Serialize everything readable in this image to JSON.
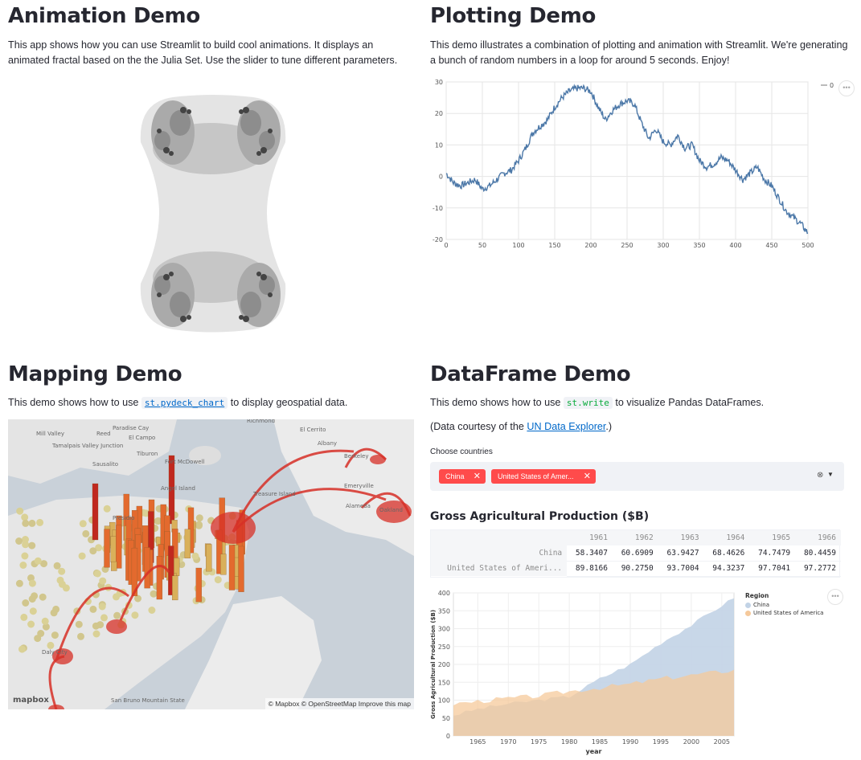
{
  "animation": {
    "title": "Animation Demo",
    "description": "This app shows how you can use Streamlit to build cool animations. It displays an animated fractal based on the the Julia Set. Use the slider to tune different parameters."
  },
  "plotting": {
    "title": "Plotting Demo",
    "description": "This demo illustrates a combination of plotting and animation with Streamlit. We're generating a bunch of random numbers in a loop for around 5 seconds. Enjoy!",
    "legend_label": "0",
    "menu_icon": "ellipsis-icon"
  },
  "mapping": {
    "title": "Mapping Demo",
    "desc_before": "This demo shows how to use",
    "desc_code": "st.pydeck_chart",
    "desc_after": "to display geospatial data.",
    "attribution": "© Mapbox © OpenStreetMap Improve this map",
    "logo": "mapbox",
    "place_labels": [
      "Richmond",
      "El Cerrito",
      "Mill Valley",
      "Tamalpais Valley Junction",
      "Sausalito",
      "Albany",
      "Berkeley",
      "Emeryville",
      "Oakland",
      "Treasure Island",
      "Presidio",
      "Daly City",
      "San Bruno Mountain State",
      "Reed",
      "Paradise Cay",
      "El Campo",
      "Tiburon",
      "Fort McDowell",
      "Angel Island",
      "Alameda"
    ]
  },
  "dataframe": {
    "title": "DataFrame Demo",
    "desc_before": "This demo shows how to use",
    "desc_code": "st.write",
    "desc_after": "to visualize Pandas DataFrames.",
    "courtesy_before": "(Data courtesy of the ",
    "courtesy_link": "UN Data Explorer",
    "courtesy_after": ".)",
    "choose_label": "Choose countries",
    "tags": [
      "China",
      "United States of Amer..."
    ],
    "table_title": "Gross Agricultural Production ($B)",
    "columns": [
      "1961",
      "1962",
      "1963",
      "1964",
      "1965",
      "1966"
    ],
    "rows": [
      {
        "label": "China",
        "values": [
          "58.3407",
          "60.6909",
          "63.9427",
          "68.4626",
          "74.7479",
          "80.4459"
        ]
      },
      {
        "label": "United States of Ameri...",
        "values": [
          "89.8166",
          "90.2750",
          "93.7004",
          "94.3237",
          "97.7041",
          "97.2772"
        ]
      }
    ]
  },
  "area_chart_legend": {
    "title": "Region",
    "entries": [
      "China",
      "United States of America"
    ]
  },
  "colors": {
    "line": "#4c78a8",
    "china": "#c2d3e6",
    "usa": "#f5c99b",
    "overlap": "#cfb295",
    "accent": "#ff4b4b",
    "map_red": "#d73027"
  },
  "chart_data": [
    {
      "type": "line",
      "title": "",
      "xlabel": "",
      "ylabel": "",
      "xlim": [
        0,
        500
      ],
      "ylim": [
        -20,
        30
      ],
      "x_ticks": [
        0,
        50,
        100,
        150,
        200,
        250,
        300,
        350,
        400,
        450,
        500
      ],
      "y_ticks": [
        -20,
        -10,
        0,
        10,
        20,
        30
      ],
      "series": [
        {
          "name": "0",
          "x": [
            0,
            10,
            20,
            30,
            40,
            50,
            60,
            70,
            80,
            90,
            100,
            110,
            120,
            130,
            140,
            150,
            160,
            170,
            180,
            190,
            200,
            210,
            220,
            230,
            240,
            250,
            260,
            270,
            280,
            290,
            300,
            310,
            320,
            330,
            340,
            350,
            360,
            370,
            380,
            390,
            400,
            410,
            420,
            430,
            440,
            450,
            460,
            470,
            480,
            490,
            500
          ],
          "values": [
            1,
            -2,
            -3,
            -2,
            -1,
            -4,
            -3,
            -1,
            1,
            2,
            5,
            9,
            14,
            16,
            18,
            22,
            25,
            27,
            28,
            28,
            27,
            22,
            18,
            21,
            23,
            24,
            23,
            17,
            12,
            15,
            11,
            10,
            13,
            9,
            10,
            5,
            3,
            4,
            6,
            5,
            2,
            -1,
            1,
            3,
            -1,
            -3,
            -7,
            -11,
            -13,
            -15,
            -18
          ]
        }
      ]
    },
    {
      "type": "area",
      "title": "",
      "xlabel": "year",
      "ylabel": "Gross Agricultural Production ($B)",
      "xlim": [
        1961,
        2007
      ],
      "ylim": [
        0,
        400
      ],
      "x_ticks": [
        1965,
        1970,
        1975,
        1980,
        1985,
        1990,
        1995,
        2000,
        2005
      ],
      "y_ticks": [
        0,
        50,
        100,
        150,
        200,
        250,
        300,
        350,
        400
      ],
      "legend_title": "Region",
      "legend_position": "right",
      "series": [
        {
          "name": "China",
          "x": [
            1961,
            1965,
            1970,
            1975,
            1980,
            1985,
            1990,
            1995,
            2000,
            2005,
            2007
          ],
          "values": [
            58,
            75,
            90,
            100,
            110,
            160,
            200,
            260,
            310,
            365,
            385
          ]
        },
        {
          "name": "United States of America",
          "x": [
            1961,
            1965,
            1970,
            1975,
            1980,
            1985,
            1990,
            1995,
            2000,
            2005,
            2007
          ],
          "values": [
            90,
            97,
            105,
            112,
            125,
            135,
            145,
            160,
            170,
            180,
            185
          ]
        }
      ]
    }
  ]
}
